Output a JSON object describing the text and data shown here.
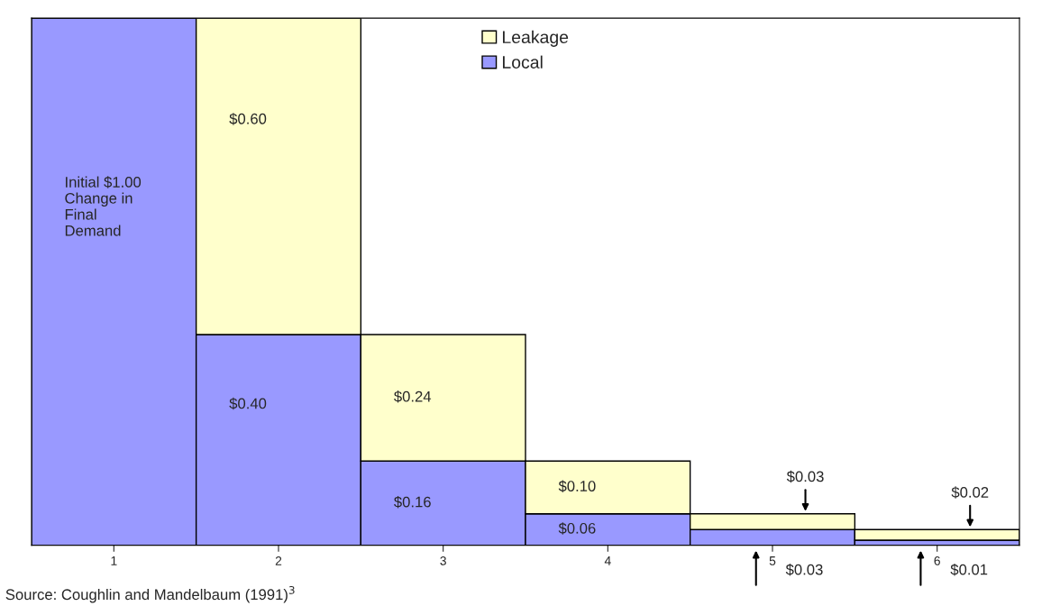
{
  "chart_data": {
    "type": "bar",
    "stacked": true,
    "categories": [
      "1",
      "2",
      "3",
      "4",
      "5",
      "6"
    ],
    "series": [
      {
        "name": "Local",
        "color": "#9999ff",
        "values": [
          1.0,
          0.4,
          0.16,
          0.06,
          0.03,
          0.01
        ],
        "value_labels": [
          "Initial $1.00\nChange in\nFinal\nDemand",
          "$0.40",
          "$0.16",
          "$0.06",
          "$0.03",
          "$0.01"
        ]
      },
      {
        "name": "Leakage",
        "color": "#ffffcc",
        "values": [
          null,
          0.6,
          0.24,
          0.1,
          0.03,
          0.02
        ],
        "value_labels": [
          null,
          "$0.60",
          "$0.24",
          "$0.10",
          "$0.03",
          "$0.02"
        ]
      }
    ],
    "ylim": [
      0,
      1.0
    ],
    "tick_labels": "x",
    "legend": "top",
    "grid": false,
    "annotations": [
      "Source: Coughlin and Mandelbaum (1991)$^{3}$"
    ]
  }
}
